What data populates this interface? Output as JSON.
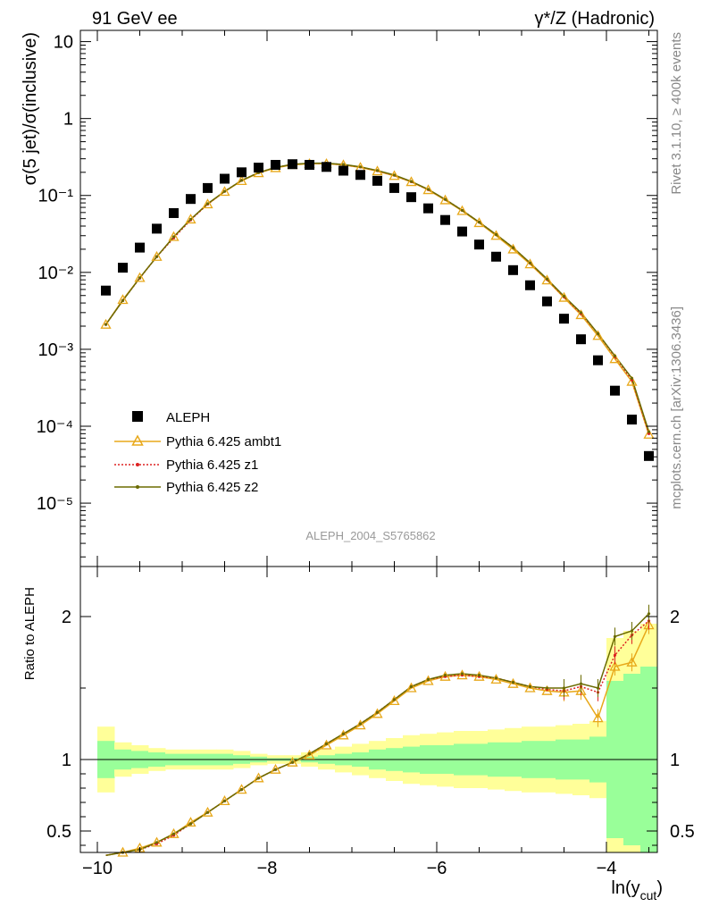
{
  "header": {
    "left_label": "91 GeV ee",
    "right_label": "γ*/Z (Hadronic)"
  },
  "side_labels": {
    "rivet": "Rivet 3.1.10, ≥ 400k events",
    "mcplots": "mcplots.cern.ch [arXiv:1306.3436]"
  },
  "analysis_id": "ALEPH_2004_S5765862",
  "colors": {
    "data": "#000000",
    "ambt1": "#e8a81a",
    "z1": "#dd2222",
    "z2": "#6b6b00",
    "band_inner": "#99ff99",
    "band_outer": "#ffff99"
  },
  "chart_data": [
    {
      "type": "scatter",
      "title": "",
      "ylabel": "σ(5 jet)/σ(inclusive)",
      "xlabel": "",
      "yscale": "log",
      "xlim": [
        -10.2,
        -3.4
      ],
      "ylim": [
        1.5e-06,
        14
      ],
      "x": [
        -9.9,
        -9.7,
        -9.5,
        -9.3,
        -9.1,
        -8.9,
        -8.7,
        -8.5,
        -8.3,
        -8.1,
        -7.9,
        -7.7,
        -7.5,
        -7.3,
        -7.1,
        -6.9,
        -6.7,
        -6.5,
        -6.3,
        -6.1,
        -5.9,
        -5.7,
        -5.5,
        -5.3,
        -5.1,
        -4.9,
        -4.7,
        -4.5,
        -4.3,
        -4.1,
        -3.9,
        -3.7,
        -3.5
      ],
      "yticks": [
        "10⁻⁵",
        "10⁻⁴",
        "10⁻³",
        "10⁻²",
        "10⁻¹",
        "1",
        "10"
      ],
      "legend": {
        "position": "bottom-left",
        "entries": [
          "ALEPH",
          "Pythia 6.425 ambt1",
          "Pythia 6.425 z1",
          "Pythia 6.425 z2"
        ]
      },
      "series": [
        {
          "name": "ALEPH",
          "marker": "square",
          "values": [
            0.0058,
            0.0115,
            0.021,
            0.037,
            0.059,
            0.09,
            0.125,
            0.165,
            0.2,
            0.23,
            0.25,
            0.255,
            0.25,
            0.235,
            0.21,
            0.185,
            0.155,
            0.125,
            0.095,
            0.068,
            0.048,
            0.034,
            0.023,
            0.016,
            0.0107,
            0.0068,
            0.0042,
            0.0025,
            0.00135,
            0.00072,
            0.00029,
            0.000122,
            4.1e-05
          ]
        },
        {
          "name": "Pythia 6.425 ambt1",
          "marker": "triangle",
          "values": [
            0.0021,
            0.0044,
            0.0085,
            0.016,
            0.029,
            0.049,
            0.077,
            0.112,
            0.155,
            0.196,
            0.228,
            0.25,
            0.258,
            0.258,
            0.249,
            0.231,
            0.207,
            0.18,
            0.15,
            0.118,
            0.087,
            0.063,
            0.044,
            0.03,
            0.02,
            0.0128,
            0.0079,
            0.0047,
            0.0028,
            0.0015,
            0.00075,
            0.00038,
            7.8e-05
          ]
        },
        {
          "name": "Pythia 6.425 z1",
          "marker": "dot",
          "values": [
            0.0021,
            0.0043,
            0.0084,
            0.016,
            0.028,
            0.048,
            0.077,
            0.113,
            0.157,
            0.198,
            0.232,
            0.254,
            0.262,
            0.262,
            0.252,
            0.234,
            0.21,
            0.183,
            0.151,
            0.119,
            0.089,
            0.064,
            0.045,
            0.031,
            0.021,
            0.0132,
            0.0081,
            0.0048,
            0.0029,
            0.0016,
            0.0008,
            0.0004,
            8e-05
          ]
        },
        {
          "name": "Pythia 6.425 z2",
          "marker": "dot",
          "values": [
            0.0021,
            0.0043,
            0.0085,
            0.016,
            0.029,
            0.049,
            0.078,
            0.113,
            0.157,
            0.198,
            0.232,
            0.254,
            0.263,
            0.263,
            0.253,
            0.235,
            0.211,
            0.184,
            0.152,
            0.12,
            0.089,
            0.064,
            0.045,
            0.031,
            0.021,
            0.0133,
            0.0082,
            0.0049,
            0.003,
            0.0016,
            0.00082,
            0.00042,
            8.5e-05
          ]
        }
      ]
    },
    {
      "type": "line",
      "title": "",
      "ylabel": "Ratio to ALEPH",
      "xlabel": "ln(y_cut)",
      "xlim": [
        -10.2,
        -3.4
      ],
      "ylim": [
        0.35,
        2.35
      ],
      "xticks": [
        "−10",
        "−8",
        "−6",
        "−4"
      ],
      "xtick_values": [
        -10,
        -8,
        -6,
        -4
      ],
      "yticks": [
        "0.5",
        "1",
        "2"
      ],
      "ytick_values": [
        0.5,
        1,
        2
      ],
      "x": [
        -9.9,
        -9.7,
        -9.5,
        -9.3,
        -9.1,
        -8.9,
        -8.7,
        -8.5,
        -8.3,
        -8.1,
        -7.9,
        -7.7,
        -7.5,
        -7.3,
        -7.1,
        -6.9,
        -6.7,
        -6.5,
        -6.3,
        -6.1,
        -5.9,
        -5.7,
        -5.5,
        -5.3,
        -5.1,
        -4.9,
        -4.7,
        -4.5,
        -4.3,
        -4.1,
        -3.9,
        -3.7,
        -3.5
      ],
      "band_inner_halfwidth": [
        0.13,
        0.07,
        0.06,
        0.05,
        0.04,
        0.04,
        0.04,
        0.04,
        0.03,
        0.02,
        0.01,
        0.01,
        0.02,
        0.03,
        0.04,
        0.05,
        0.07,
        0.08,
        0.09,
        0.1,
        0.1,
        0.11,
        0.11,
        0.12,
        0.12,
        0.13,
        0.13,
        0.14,
        0.14,
        0.16,
        0.55,
        0.6,
        0.65
      ],
      "band_outer_halfwidth": [
        0.23,
        0.12,
        0.1,
        0.08,
        0.07,
        0.07,
        0.07,
        0.07,
        0.06,
        0.04,
        0.03,
        0.03,
        0.05,
        0.07,
        0.09,
        0.11,
        0.13,
        0.15,
        0.17,
        0.18,
        0.19,
        0.2,
        0.2,
        0.21,
        0.22,
        0.23,
        0.23,
        0.24,
        0.25,
        0.27,
        0.85,
        0.9,
        0.95
      ],
      "series": [
        {
          "name": "Pythia 6.425 ambt1",
          "values": [
            0.33,
            0.35,
            0.38,
            0.42,
            0.48,
            0.56,
            0.63,
            0.71,
            0.79,
            0.87,
            0.93,
            0.98,
            1.03,
            1.1,
            1.17,
            1.24,
            1.32,
            1.41,
            1.5,
            1.55,
            1.58,
            1.59,
            1.58,
            1.56,
            1.53,
            1.5,
            1.48,
            1.47,
            1.48,
            1.29,
            1.65,
            1.68,
            1.94
          ]
        },
        {
          "name": "Pythia 6.425 z1",
          "values": [
            0.33,
            0.35,
            0.37,
            0.41,
            0.47,
            0.55,
            0.63,
            0.71,
            0.79,
            0.87,
            0.93,
            0.98,
            1.04,
            1.11,
            1.18,
            1.25,
            1.33,
            1.42,
            1.51,
            1.56,
            1.58,
            1.59,
            1.58,
            1.57,
            1.54,
            1.51,
            1.49,
            1.48,
            1.51,
            1.47,
            1.73,
            1.87,
            1.97
          ]
        },
        {
          "name": "Pythia 6.425 z2",
          "values": [
            0.33,
            0.35,
            0.37,
            0.42,
            0.48,
            0.55,
            0.63,
            0.71,
            0.79,
            0.87,
            0.93,
            0.98,
            1.04,
            1.11,
            1.18,
            1.25,
            1.33,
            1.42,
            1.51,
            1.56,
            1.59,
            1.6,
            1.59,
            1.57,
            1.54,
            1.51,
            1.5,
            1.5,
            1.53,
            1.5,
            1.86,
            1.9,
            2.02
          ]
        }
      ]
    }
  ]
}
